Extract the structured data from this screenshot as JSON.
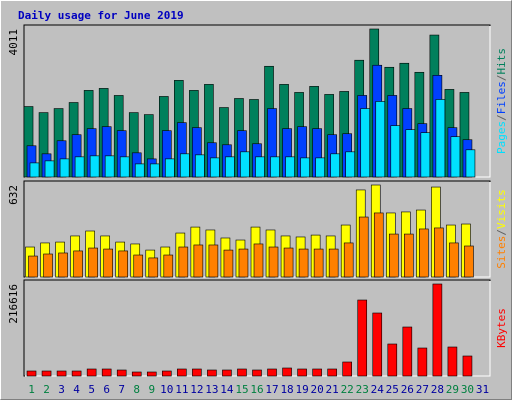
{
  "chart_data": [
    {
      "type": "bar",
      "title": "Daily usage for June 2019",
      "categories": [
        "1",
        "2",
        "3",
        "4",
        "5",
        "6",
        "7",
        "8",
        "9",
        "10",
        "11",
        "12",
        "13",
        "14",
        "15",
        "16",
        "17",
        "18",
        "19",
        "20",
        "21",
        "22",
        "23",
        "24",
        "25",
        "26",
        "27",
        "28",
        "29",
        "30",
        "31"
      ],
      "category_colors": [
        "#008040",
        "#008040",
        "#0000a0",
        "#0000a0",
        "#0000a0",
        "#0000a0",
        "#0000a0",
        "#008040",
        "#008040",
        "#0000a0",
        "#0000a0",
        "#0000a0",
        "#0000a0",
        "#0000a0",
        "#008040",
        "#008040",
        "#0000a0",
        "#0000a0",
        "#0000a0",
        "#0000a0",
        "#0000a0",
        "#008040",
        "#008040",
        "#0000a0",
        "#0000a0",
        "#0000a0",
        "#0000a0",
        "#0000a0",
        "#008040",
        "#008040",
        "#0000a0"
      ],
      "ylim": [
        0,
        4011
      ],
      "yticks": [
        4011
      ],
      "series": [
        {
          "name": "Hits",
          "color": "#00805c",
          "values": [
            1910,
            1746,
            1855,
            2019,
            2347,
            2401,
            2210,
            1746,
            1692,
            2183,
            2619,
            2347,
            2510,
            1883,
            2128,
            2101,
            3001,
            2510,
            2292,
            2456,
            2238,
            2319,
            3165,
            4011,
            2974,
            3083,
            2838,
            3847,
            2374,
            2292,
            null
          ]
        },
        {
          "name": "Files",
          "color": "#0040ff",
          "values": [
            846,
            628,
            982,
            1146,
            1310,
            1364,
            1255,
            655,
            491,
            1255,
            1473,
            1337,
            928,
            873,
            1255,
            901,
            1855,
            1310,
            1364,
            1310,
            1146,
            1173,
            2210,
            3029,
            2210,
            1855,
            1446,
            2756,
            1337,
            1010,
            null
          ]
        },
        {
          "name": "Pages",
          "color": "#00e0ff",
          "values": [
            382,
            437,
            491,
            546,
            573,
            573,
            546,
            355,
            355,
            491,
            628,
            600,
            518,
            546,
            682,
            546,
            546,
            546,
            518,
            518,
            628,
            682,
            1855,
            2047,
            1392,
            1282,
            1201,
            2101,
            1092,
            737,
            null
          ]
        }
      ]
    },
    {
      "type": "bar",
      "ylim": [
        0,
        632
      ],
      "yticks": [
        632
      ],
      "series": [
        {
          "name": "Visits",
          "color": "#ffff00",
          "values": [
            206,
            234,
            240,
            282,
            316,
            282,
            240,
            227,
            185,
            206,
            302,
            343,
            323,
            268,
            254,
            343,
            323,
            282,
            275,
            288,
            282,
            357,
            598,
            632,
            440,
            447,
            460,
            618,
            357,
            364,
            null
          ]
        },
        {
          "name": "Sites",
          "color": "#ff8000",
          "values": [
            144,
            158,
            165,
            179,
            199,
            192,
            179,
            151,
            131,
            151,
            206,
            220,
            220,
            185,
            192,
            227,
            206,
            199,
            192,
            192,
            192,
            234,
            412,
            440,
            295,
            295,
            330,
            337,
            234,
            213,
            null
          ]
        }
      ]
    },
    {
      "type": "bar",
      "ylim": [
        0,
        216616
      ],
      "yticks": [
        216616
      ],
      "series": [
        {
          "name": "KBytes",
          "color": "#ff0000",
          "values": [
            11770,
            11770,
            11770,
            11770,
            16480,
            16480,
            14120,
            9420,
            9420,
            11770,
            16480,
            16480,
            14120,
            14120,
            16480,
            14120,
            16480,
            18830,
            16480,
            16480,
            16480,
            32960,
            178900,
            148300,
            75330,
            115350,
            65910,
            216616,
            68270,
            47080,
            null
          ]
        }
      ]
    }
  ]
}
